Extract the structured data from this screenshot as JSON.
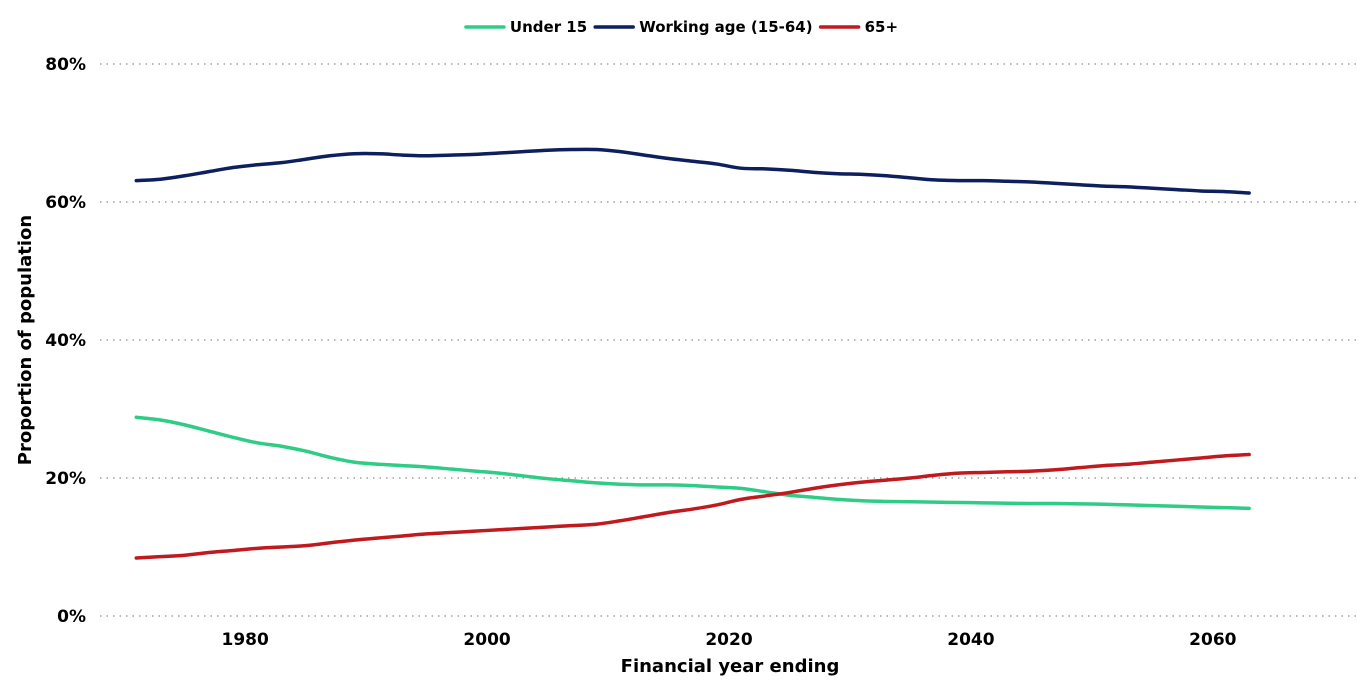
{
  "chart_data": {
    "type": "line",
    "title": "",
    "xlabel": "Financial year ending",
    "ylabel": "Proportion of population",
    "xlim": [
      1968,
      2072
    ],
    "ylim": [
      0,
      80
    ],
    "y_ticks": [
      0,
      20,
      40,
      60,
      80
    ],
    "y_tick_labels": [
      "0%",
      "20%",
      "40%",
      "60%",
      "80%"
    ],
    "x_ticks": [
      1980,
      2000,
      2020,
      2040,
      2060
    ],
    "x_tick_labels": [
      "1980",
      "2000",
      "2020",
      "2040",
      "2060"
    ],
    "grid": "horizontal dotted",
    "legend_position": "top-center",
    "x": [
      1971,
      1973,
      1975,
      1977,
      1979,
      1981,
      1983,
      1985,
      1987,
      1989,
      1991,
      1993,
      1995,
      1997,
      1999,
      2001,
      2003,
      2005,
      2007,
      2009,
      2011,
      2013,
      2015,
      2017,
      2019,
      2021,
      2023,
      2025,
      2027,
      2029,
      2031,
      2033,
      2035,
      2037,
      2039,
      2041,
      2043,
      2045,
      2047,
      2049,
      2051,
      2053,
      2055,
      2057,
      2059,
      2061,
      2063
    ],
    "series": [
      {
        "name": "Under 15",
        "color": "#2ecc84",
        "values": [
          28.8,
          28.4,
          27.7,
          26.8,
          25.9,
          25.1,
          24.6,
          23.9,
          23.0,
          22.3,
          22.0,
          21.8,
          21.6,
          21.3,
          21.0,
          20.7,
          20.3,
          19.9,
          19.6,
          19.3,
          19.1,
          19.0,
          19.0,
          18.9,
          18.7,
          18.5,
          18.0,
          17.5,
          17.2,
          16.9,
          16.7,
          16.6,
          16.55,
          16.5,
          16.45,
          16.4,
          16.35,
          16.3,
          16.3,
          16.25,
          16.2,
          16.1,
          16.0,
          15.9,
          15.8,
          15.7,
          15.6
        ]
      },
      {
        "name": "Working age (15-64)",
        "color": "#0d1f5c",
        "values": [
          63.1,
          63.3,
          63.8,
          64.4,
          65.0,
          65.4,
          65.7,
          66.2,
          66.7,
          67.0,
          67.0,
          66.8,
          66.7,
          66.8,
          66.9,
          67.1,
          67.3,
          67.5,
          67.6,
          67.6,
          67.3,
          66.8,
          66.3,
          65.9,
          65.5,
          64.9,
          64.8,
          64.6,
          64.3,
          64.1,
          64.0,
          63.8,
          63.5,
          63.2,
          63.1,
          63.1,
          63.0,
          62.9,
          62.7,
          62.5,
          62.3,
          62.2,
          62.0,
          61.8,
          61.6,
          61.5,
          61.3
        ]
      },
      {
        "name": "65+",
        "color": "#c0191e",
        "values": [
          8.4,
          8.6,
          8.8,
          9.2,
          9.5,
          9.8,
          10.0,
          10.2,
          10.6,
          11.0,
          11.3,
          11.6,
          11.9,
          12.1,
          12.3,
          12.5,
          12.7,
          12.9,
          13.1,
          13.3,
          13.8,
          14.4,
          15.0,
          15.5,
          16.1,
          16.9,
          17.4,
          17.9,
          18.5,
          19.0,
          19.4,
          19.7,
          20.0,
          20.4,
          20.7,
          20.8,
          20.9,
          21.0,
          21.2,
          21.5,
          21.8,
          22.0,
          22.3,
          22.6,
          22.9,
          23.2,
          23.4
        ]
      }
    ]
  }
}
